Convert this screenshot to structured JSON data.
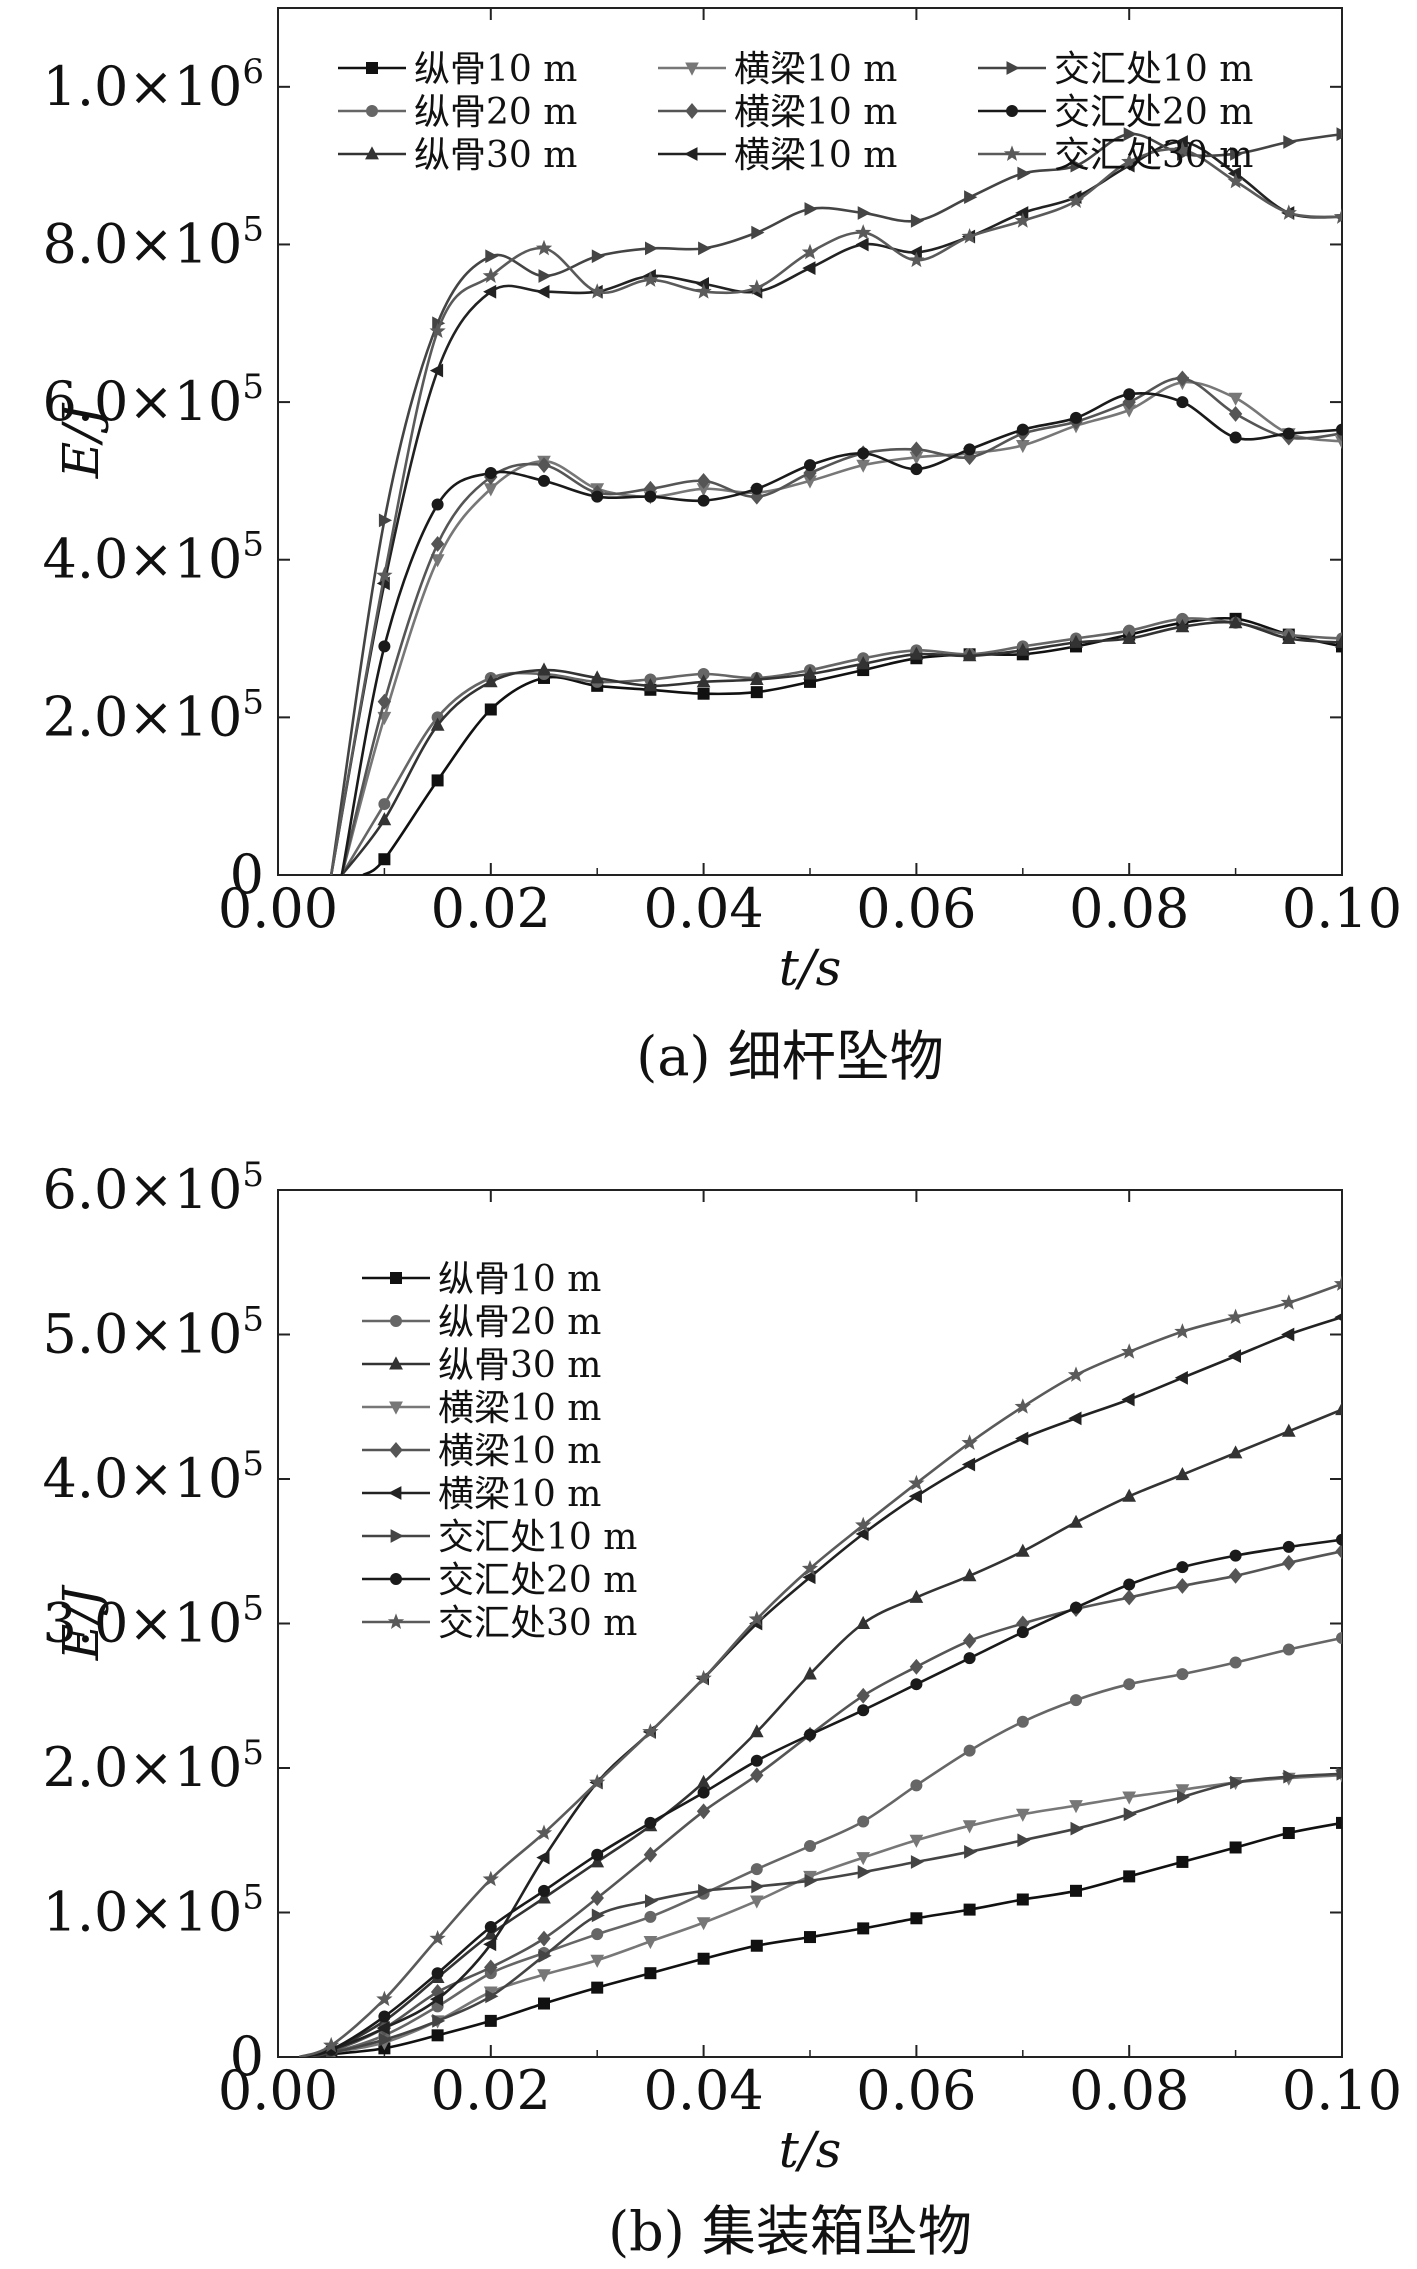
{
  "chart_data": [
    {
      "type": "line",
      "caption": "(a) 细杆坠物",
      "xlabel": "t/s",
      "ylabel": "E/J",
      "xlim": [
        0,
        0.1
      ],
      "ylim": [
        0,
        1100000
      ],
      "x_ticks": [
        0,
        0.02,
        0.04,
        0.06,
        0.08,
        0.1
      ],
      "x_tick_labels": [
        "0.00",
        "0.02",
        "0.04",
        "0.06",
        "0.08",
        "0.10"
      ],
      "y_ticks": [
        0,
        200000,
        400000,
        600000,
        800000,
        1000000
      ],
      "y_tick_labels": [
        {
          "mant": "0",
          "exp": ""
        },
        {
          "mant": "2.0×10",
          "exp": "5"
        },
        {
          "mant": "4.0×10",
          "exp": "5"
        },
        {
          "mant": "6.0×10",
          "exp": "5"
        },
        {
          "mant": "8.0×10",
          "exp": "5"
        },
        {
          "mant": "1.0×10",
          "exp": "6"
        }
      ],
      "grid": false,
      "legend_placement": "top-left",
      "legend_layout": "3 columns x 3 rows",
      "series": [
        {
          "name": "纵骨10 m",
          "marker": "square",
          "color": "#111111",
          "x": [
            0.008,
            0.01,
            0.015,
            0.02,
            0.025,
            0.03,
            0.035,
            0.04,
            0.045,
            0.05,
            0.055,
            0.06,
            0.065,
            0.07,
            0.075,
            0.08,
            0.085,
            0.09,
            0.095,
            0.1
          ],
          "y": [
            0,
            20000,
            120000,
            210000,
            250000,
            240000,
            235000,
            230000,
            232000,
            245000,
            260000,
            275000,
            280000,
            280000,
            290000,
            305000,
            320000,
            325000,
            305000,
            290000
          ]
        },
        {
          "name": "纵骨20 m",
          "marker": "circle",
          "color": "#666666",
          "x": [
            0.006,
            0.01,
            0.015,
            0.02,
            0.025,
            0.03,
            0.035,
            0.04,
            0.045,
            0.05,
            0.055,
            0.06,
            0.065,
            0.07,
            0.075,
            0.08,
            0.085,
            0.09,
            0.095,
            0.1
          ],
          "y": [
            0,
            90000,
            200000,
            250000,
            255000,
            245000,
            248000,
            255000,
            250000,
            260000,
            275000,
            285000,
            280000,
            290000,
            300000,
            310000,
            325000,
            320000,
            305000,
            300000
          ]
        },
        {
          "name": "纵骨30 m",
          "marker": "triangle-up",
          "color": "#333333",
          "x": [
            0.006,
            0.01,
            0.015,
            0.02,
            0.025,
            0.03,
            0.035,
            0.04,
            0.045,
            0.05,
            0.055,
            0.06,
            0.065,
            0.07,
            0.075,
            0.08,
            0.085,
            0.09,
            0.095,
            0.1
          ],
          "y": [
            0,
            70000,
            190000,
            245000,
            260000,
            250000,
            240000,
            245000,
            248000,
            255000,
            268000,
            280000,
            278000,
            285000,
            295000,
            300000,
            315000,
            320000,
            300000,
            295000
          ]
        },
        {
          "name": "横梁10 m",
          "marker": "triangle-down",
          "color": "#777777",
          "x": [
            0.006,
            0.01,
            0.015,
            0.02,
            0.025,
            0.03,
            0.035,
            0.04,
            0.045,
            0.05,
            0.055,
            0.06,
            0.065,
            0.07,
            0.075,
            0.08,
            0.085,
            0.09,
            0.095,
            0.1
          ],
          "y": [
            0,
            200000,
            400000,
            490000,
            525000,
            490000,
            480000,
            490000,
            485000,
            500000,
            520000,
            530000,
            535000,
            545000,
            570000,
            590000,
            625000,
            605000,
            560000,
            550000
          ]
        },
        {
          "name": "横梁10 m",
          "marker": "diamond",
          "color": "#555555",
          "x": [
            0.006,
            0.01,
            0.015,
            0.02,
            0.025,
            0.03,
            0.035,
            0.04,
            0.045,
            0.05,
            0.055,
            0.06,
            0.065,
            0.07,
            0.075,
            0.08,
            0.085,
            0.09,
            0.095,
            0.1
          ],
          "y": [
            0,
            220000,
            420000,
            505000,
            520000,
            485000,
            490000,
            500000,
            480000,
            510000,
            535000,
            540000,
            530000,
            560000,
            575000,
            600000,
            630000,
            585000,
            555000,
            560000
          ]
        },
        {
          "name": "横梁10 m",
          "marker": "triangle-left",
          "color": "#222222",
          "x": [
            0.005,
            0.01,
            0.015,
            0.02,
            0.025,
            0.03,
            0.035,
            0.04,
            0.045,
            0.05,
            0.055,
            0.06,
            0.065,
            0.07,
            0.075,
            0.08,
            0.085,
            0.09,
            0.095,
            0.1
          ],
          "y": [
            0,
            370000,
            640000,
            740000,
            740000,
            740000,
            760000,
            750000,
            740000,
            770000,
            800000,
            790000,
            810000,
            840000,
            860000,
            900000,
            930000,
            890000,
            840000,
            835000
          ]
        },
        {
          "name": "交汇处10 m",
          "marker": "triangle-right",
          "color": "#444444",
          "x": [
            0.005,
            0.01,
            0.015,
            0.02,
            0.025,
            0.03,
            0.035,
            0.04,
            0.045,
            0.05,
            0.055,
            0.06,
            0.065,
            0.07,
            0.075,
            0.08,
            0.085,
            0.09,
            0.095,
            0.1
          ],
          "y": [
            0,
            450000,
            700000,
            785000,
            760000,
            785000,
            795000,
            795000,
            815000,
            845000,
            840000,
            830000,
            860000,
            890000,
            900000,
            940000,
            915000,
            915000,
            930000,
            940000
          ]
        },
        {
          "name": "交汇处20 m",
          "marker": "circle",
          "color": "#1a1a1a",
          "x": [
            0.006,
            0.01,
            0.015,
            0.02,
            0.025,
            0.03,
            0.035,
            0.04,
            0.045,
            0.05,
            0.055,
            0.06,
            0.065,
            0.07,
            0.075,
            0.08,
            0.085,
            0.09,
            0.095,
            0.1
          ],
          "y": [
            0,
            290000,
            470000,
            510000,
            500000,
            480000,
            480000,
            475000,
            490000,
            520000,
            535000,
            515000,
            540000,
            565000,
            580000,
            610000,
            600000,
            555000,
            560000,
            565000
          ]
        },
        {
          "name": "交汇处30 m",
          "marker": "star",
          "color": "#5a5a5a",
          "x": [
            0.005,
            0.01,
            0.015,
            0.02,
            0.025,
            0.03,
            0.035,
            0.04,
            0.045,
            0.05,
            0.055,
            0.06,
            0.065,
            0.07,
            0.075,
            0.08,
            0.085,
            0.09,
            0.095,
            0.1
          ],
          "y": [
            0,
            380000,
            690000,
            760000,
            795000,
            740000,
            755000,
            740000,
            745000,
            790000,
            815000,
            780000,
            810000,
            830000,
            855000,
            905000,
            920000,
            880000,
            840000,
            835000
          ]
        }
      ]
    },
    {
      "type": "line",
      "caption": "(b) 集装箱坠物",
      "xlabel": "t/s",
      "ylabel": "E/J",
      "xlim": [
        0,
        0.1
      ],
      "ylim": [
        0,
        600000
      ],
      "x_ticks": [
        0,
        0.02,
        0.04,
        0.06,
        0.08,
        0.1
      ],
      "x_tick_labels": [
        "0.00",
        "0.02",
        "0.04",
        "0.06",
        "0.08",
        "0.10"
      ],
      "y_ticks": [
        0,
        100000,
        200000,
        300000,
        400000,
        500000,
        600000
      ],
      "y_tick_labels": [
        {
          "mant": "0",
          "exp": ""
        },
        {
          "mant": "1.0×10",
          "exp": "5"
        },
        {
          "mant": "2.0×10",
          "exp": "5"
        },
        {
          "mant": "3.0×10",
          "exp": "5"
        },
        {
          "mant": "4.0×10",
          "exp": "5"
        },
        {
          "mant": "5.0×10",
          "exp": "5"
        },
        {
          "mant": "6.0×10",
          "exp": "5"
        }
      ],
      "grid": false,
      "legend_placement": "top-left",
      "legend_layout": "1 column x 9 rows",
      "series": [
        {
          "name": "纵骨10 m",
          "marker": "square",
          "color": "#111111",
          "x": [
            0.002,
            0.005,
            0.01,
            0.015,
            0.02,
            0.025,
            0.03,
            0.035,
            0.04,
            0.045,
            0.05,
            0.055,
            0.06,
            0.065,
            0.07,
            0.075,
            0.08,
            0.085,
            0.09,
            0.095,
            0.1
          ],
          "y": [
            0,
            2000,
            6000,
            15000,
            25000,
            37000,
            48000,
            58000,
            68000,
            77000,
            83000,
            89000,
            96000,
            102000,
            109000,
            115000,
            125000,
            135000,
            145000,
            155000,
            162000
          ]
        },
        {
          "name": "纵骨20 m",
          "marker": "circle",
          "color": "#666666",
          "x": [
            0.002,
            0.005,
            0.01,
            0.015,
            0.02,
            0.025,
            0.03,
            0.035,
            0.04,
            0.045,
            0.05,
            0.055,
            0.06,
            0.065,
            0.07,
            0.075,
            0.08,
            0.085,
            0.09,
            0.095,
            0.1
          ],
          "y": [
            0,
            3000,
            15000,
            35000,
            58000,
            72000,
            85000,
            97000,
            113000,
            130000,
            146000,
            163000,
            188000,
            212000,
            232000,
            247000,
            258000,
            265000,
            273000,
            282000,
            290000
          ]
        },
        {
          "name": "纵骨30 m",
          "marker": "triangle-up",
          "color": "#333333",
          "x": [
            0.002,
            0.005,
            0.01,
            0.015,
            0.02,
            0.025,
            0.03,
            0.035,
            0.04,
            0.045,
            0.05,
            0.055,
            0.06,
            0.065,
            0.07,
            0.075,
            0.08,
            0.085,
            0.09,
            0.095,
            0.1
          ],
          "y": [
            0,
            5000,
            25000,
            55000,
            85000,
            110000,
            135000,
            160000,
            190000,
            225000,
            265000,
            300000,
            318000,
            333000,
            350000,
            370000,
            388000,
            403000,
            418000,
            433000,
            448000
          ]
        },
        {
          "name": "横梁10 m",
          "marker": "triangle-down",
          "color": "#777777",
          "x": [
            0.002,
            0.005,
            0.01,
            0.015,
            0.02,
            0.025,
            0.03,
            0.035,
            0.04,
            0.045,
            0.05,
            0.055,
            0.06,
            0.065,
            0.07,
            0.075,
            0.08,
            0.085,
            0.09,
            0.095,
            0.1
          ],
          "y": [
            0,
            3000,
            10000,
            25000,
            45000,
            57000,
            67000,
            80000,
            93000,
            108000,
            125000,
            138000,
            150000,
            160000,
            168000,
            174000,
            180000,
            185000,
            190000,
            193000,
            195000
          ]
        },
        {
          "name": "横梁10 m",
          "marker": "diamond",
          "color": "#555555",
          "x": [
            0.002,
            0.005,
            0.01,
            0.015,
            0.02,
            0.025,
            0.03,
            0.035,
            0.04,
            0.045,
            0.05,
            0.055,
            0.06,
            0.065,
            0.07,
            0.075,
            0.08,
            0.085,
            0.09,
            0.095,
            0.1
          ],
          "y": [
            0,
            4000,
            20000,
            45000,
            62000,
            82000,
            110000,
            140000,
            170000,
            195000,
            223000,
            250000,
            270000,
            288000,
            300000,
            310000,
            318000,
            326000,
            333000,
            342000,
            350000
          ]
        },
        {
          "name": "横梁10 m",
          "marker": "triangle-left",
          "color": "#222222",
          "x": [
            0.002,
            0.005,
            0.01,
            0.015,
            0.02,
            0.025,
            0.03,
            0.035,
            0.04,
            0.045,
            0.05,
            0.055,
            0.06,
            0.065,
            0.07,
            0.075,
            0.08,
            0.085,
            0.09,
            0.095,
            0.1
          ],
          "y": [
            0,
            5000,
            20000,
            40000,
            78000,
            138000,
            190000,
            225000,
            262000,
            300000,
            332000,
            362000,
            388000,
            410000,
            428000,
            442000,
            455000,
            470000,
            485000,
            500000,
            512000
          ]
        },
        {
          "name": "交汇处10 m",
          "marker": "triangle-right",
          "color": "#444444",
          "x": [
            0.002,
            0.005,
            0.01,
            0.015,
            0.02,
            0.025,
            0.03,
            0.035,
            0.04,
            0.045,
            0.05,
            0.055,
            0.06,
            0.065,
            0.07,
            0.075,
            0.08,
            0.085,
            0.09,
            0.095,
            0.1
          ],
          "y": [
            0,
            3000,
            12000,
            25000,
            42000,
            70000,
            98000,
            108000,
            115000,
            118000,
            122000,
            128000,
            135000,
            142000,
            150000,
            158000,
            168000,
            180000,
            190000,
            194000,
            196000
          ]
        },
        {
          "name": "交汇处20 m",
          "marker": "circle",
          "color": "#1a1a1a",
          "x": [
            0.002,
            0.005,
            0.01,
            0.015,
            0.02,
            0.025,
            0.03,
            0.035,
            0.04,
            0.045,
            0.05,
            0.055,
            0.06,
            0.065,
            0.07,
            0.075,
            0.08,
            0.085,
            0.09,
            0.095,
            0.1
          ],
          "y": [
            0,
            5000,
            28000,
            58000,
            90000,
            115000,
            140000,
            162000,
            183000,
            205000,
            223000,
            240000,
            258000,
            276000,
            294000,
            311000,
            327000,
            339000,
            347000,
            353000,
            358000
          ]
        },
        {
          "name": "交汇处30 m",
          "marker": "star",
          "color": "#5a5a5a",
          "x": [
            0.002,
            0.005,
            0.01,
            0.015,
            0.02,
            0.025,
            0.03,
            0.035,
            0.04,
            0.045,
            0.05,
            0.055,
            0.06,
            0.065,
            0.07,
            0.075,
            0.08,
            0.085,
            0.09,
            0.095,
            0.1
          ],
          "y": [
            0,
            8000,
            40000,
            82000,
            123000,
            155000,
            190000,
            225000,
            262000,
            303000,
            338000,
            368000,
            397000,
            425000,
            450000,
            472000,
            488000,
            502000,
            512000,
            522000,
            535000
          ]
        }
      ]
    }
  ]
}
